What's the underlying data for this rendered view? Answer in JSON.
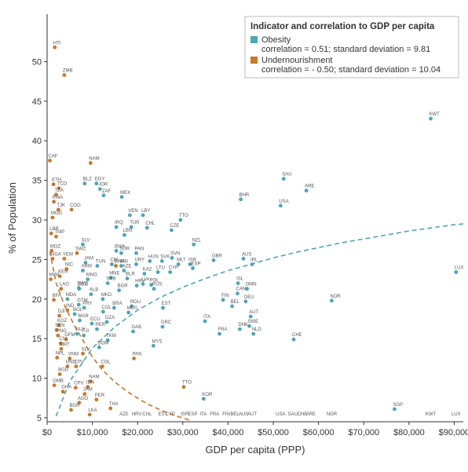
{
  "chart_data": {
    "type": "scatter",
    "title": "",
    "xlabel": "GDP per capita (PPP)",
    "ylabel": "% of Population",
    "xlim": [
      0,
      92000
    ],
    "ylim": [
      4.5,
      56
    ],
    "grid": false,
    "legend_position": "top-right",
    "x_ticks": [
      0,
      10000,
      20000,
      30000,
      40000,
      50000,
      60000,
      70000,
      80000,
      90000
    ],
    "x_tick_labels": [
      "$0",
      "$10,000",
      "$20,000",
      "$30,000",
      "$40,000",
      "$50,000",
      "$60,000",
      "$70,000",
      "$80,000",
      "$90,000"
    ],
    "y_ticks": [
      5,
      10,
      15,
      20,
      25,
      30,
      35,
      40,
      45,
      50
    ],
    "y_tick_labels": [
      "5",
      "10",
      "15",
      "20",
      "25",
      "30",
      "35",
      "40",
      "45",
      "50"
    ],
    "legend": {
      "title": "Indicator and correlation to GDP per capita"
    },
    "series": [
      {
        "name": "Obesity",
        "stats": "correlation = 0.51; standard deviation = 9.81",
        "color": "#4aa6b5",
        "points": [
          {
            "label": "KWT",
            "x": 84800,
            "y": 42.8
          },
          {
            "label": "SAU",
            "x": 52300,
            "y": 35.2
          },
          {
            "label": "ARE",
            "x": 57300,
            "y": 33.7
          },
          {
            "label": "BHR",
            "x": 42800,
            "y": 32.6
          },
          {
            "label": "USA",
            "x": 51600,
            "y": 31.8
          },
          {
            "label": "LUX",
            "x": 90400,
            "y": 23.4
          },
          {
            "label": "NOR",
            "x": 62900,
            "y": 19.8
          },
          {
            "label": "SGP",
            "x": 76800,
            "y": 6.1
          },
          {
            "label": "CHE",
            "x": 54500,
            "y": 14.9
          },
          {
            "label": "NZL",
            "x": 32400,
            "y": 26.9
          },
          {
            "label": "TTO",
            "x": 29500,
            "y": 30.0
          },
          {
            "label": "CZE",
            "x": 27500,
            "y": 28.7
          },
          {
            "label": "SVN",
            "x": 27600,
            "y": 25.2
          },
          {
            "label": "MLT",
            "x": 29000,
            "y": 24.4
          },
          {
            "label": "ISR",
            "x": 31600,
            "y": 24.4
          },
          {
            "label": "GBR",
            "x": 36800,
            "y": 24.9
          },
          {
            "label": "ESP",
            "x": 32200,
            "y": 23.9
          },
          {
            "label": "AUS",
            "x": 43400,
            "y": 25.1
          },
          {
            "label": "IRL",
            "x": 45300,
            "y": 24.4
          },
          {
            "label": "ISL",
            "x": 42200,
            "y": 22.0
          },
          {
            "label": "OMN",
            "x": 44200,
            "y": 21.3
          },
          {
            "label": "CAN",
            "x": 42100,
            "y": 20.7
          },
          {
            "label": "FIN",
            "x": 38900,
            "y": 19.9
          },
          {
            "label": "BEL",
            "x": 40900,
            "y": 19.1
          },
          {
            "label": "DEU",
            "x": 43900,
            "y": 19.7
          },
          {
            "label": "AUT",
            "x": 45000,
            "y": 17.8
          },
          {
            "label": "SWE",
            "x": 44700,
            "y": 16.6
          },
          {
            "label": "DNK",
            "x": 42600,
            "y": 16.2
          },
          {
            "label": "NLD",
            "x": 45600,
            "y": 15.6
          },
          {
            "label": "FRA",
            "x": 38100,
            "y": 15.6
          },
          {
            "label": "ITA",
            "x": 34900,
            "y": 17.2
          },
          {
            "label": "KOR",
            "x": 34600,
            "y": 7.4
          },
          {
            "label": "GRC",
            "x": 25500,
            "y": 16.5
          },
          {
            "label": "EST",
            "x": 25600,
            "y": 18.9
          },
          {
            "label": "HUN",
            "x": 22700,
            "y": 24.8
          },
          {
            "label": "SVK",
            "x": 25400,
            "y": 24.8
          },
          {
            "label": "LTU",
            "x": 24500,
            "y": 23.4
          },
          {
            "label": "CYP",
            "x": 27200,
            "y": 23.4
          },
          {
            "label": "KAZ",
            "x": 21500,
            "y": 23.2
          },
          {
            "label": "LVA",
            "x": 21200,
            "y": 21.9
          },
          {
            "label": "POL",
            "x": 23000,
            "y": 21.8
          },
          {
            "label": "HRV",
            "x": 19800,
            "y": 21.7
          },
          {
            "label": "RUS",
            "x": 23600,
            "y": 21.3
          },
          {
            "label": "MYS",
            "x": 23500,
            "y": 14.1
          },
          {
            "label": "CHL",
            "x": 22100,
            "y": 29.0
          },
          {
            "label": "TUR",
            "x": 18600,
            "y": 29.1
          },
          {
            "label": "LBY",
            "x": 21200,
            "y": 30.6
          },
          {
            "label": "VEN",
            "x": 18300,
            "y": 30.6
          },
          {
            "label": "IRQ",
            "x": 15300,
            "y": 29.1
          },
          {
            "label": "LBN",
            "x": 17100,
            "y": 28.1
          },
          {
            "label": "MEX",
            "x": 16500,
            "y": 32.9
          },
          {
            "label": "BWA",
            "x": 15300,
            "y": 26.1
          },
          {
            "label": "SUR",
            "x": 16400,
            "y": 25.8
          },
          {
            "label": "PAN",
            "x": 19700,
            "y": 25.8
          },
          {
            "label": "URY",
            "x": 19700,
            "y": 24.4
          },
          {
            "label": "AZE",
            "x": 17000,
            "y": 23.6
          },
          {
            "label": "BLR",
            "x": 17700,
            "y": 22.6
          },
          {
            "label": "BGR",
            "x": 15900,
            "y": 21.1
          },
          {
            "label": "ROU",
            "x": 18700,
            "y": 19.1
          },
          {
            "label": "MUS",
            "x": 18000,
            "y": 18.3
          },
          {
            "label": "GAB",
            "x": 19000,
            "y": 15.9
          },
          {
            "label": "BRA",
            "x": 14800,
            "y": 18.9
          },
          {
            "label": "COL",
            "x": 12400,
            "y": 18.4
          },
          {
            "label": "DZA",
            "x": 13200,
            "y": 17.1
          },
          {
            "label": "PER",
            "x": 11000,
            "y": 16.2
          },
          {
            "label": "TKM",
            "x": 13400,
            "y": 14.8
          },
          {
            "label": "DOM",
            "x": 11500,
            "y": 13.9
          },
          {
            "label": "MKD",
            "x": 12300,
            "y": 20.0
          },
          {
            "label": "ALB",
            "x": 9700,
            "y": 20.6
          },
          {
            "label": "SRB",
            "x": 13400,
            "y": 22.0
          },
          {
            "label": "MNE",
            "x": 14100,
            "y": 22.7
          },
          {
            "label": "TUN",
            "x": 11100,
            "y": 24.2
          },
          {
            "label": "CRI",
            "x": 14300,
            "y": 24.4
          },
          {
            "label": "IRN",
            "x": 16400,
            "y": 24.2
          },
          {
            "label": "JAM",
            "x": 8500,
            "y": 24.6
          },
          {
            "label": "ARM",
            "x": 7900,
            "y": 23.6
          },
          {
            "label": "MNG",
            "x": 9000,
            "y": 22.5
          },
          {
            "label": "SWZ",
            "x": 7000,
            "y": 21.4
          },
          {
            "label": "GEO",
            "x": 7100,
            "y": 21.3
          },
          {
            "label": "MDA",
            "x": 4500,
            "y": 20.0
          },
          {
            "label": "GTM",
            "x": 7000,
            "y": 19.3
          },
          {
            "label": "BOL",
            "x": 6100,
            "y": 18.1
          },
          {
            "label": "MAR",
            "x": 7200,
            "y": 17.3
          },
          {
            "label": "PRY",
            "x": 8200,
            "y": 18.9
          },
          {
            "label": "ECU",
            "x": 9900,
            "y": 16.9
          },
          {
            "label": "FJI",
            "x": 8100,
            "y": 15.4
          },
          {
            "label": "GUY",
            "x": 6600,
            "y": 15.6
          },
          {
            "label": "EGY",
            "x": 10900,
            "y": 34.6
          },
          {
            "label": "BLZ",
            "x": 8300,
            "y": 34.6
          },
          {
            "label": "JOR",
            "x": 11700,
            "y": 33.9
          },
          {
            "label": "ZAF",
            "x": 12500,
            "y": 33.1
          },
          {
            "label": "SLV",
            "x": 7900,
            "y": 26.9
          }
        ]
      },
      {
        "name": "Undernourishment",
        "stats": "correlation = - 0.50; standard deviation = 10.04",
        "color": "#c9782a",
        "points": [
          {
            "label": "HTI",
            "x": 1700,
            "y": 51.8
          },
          {
            "label": "ZMB",
            "x": 3800,
            "y": 48.3
          },
          {
            "label": "CAF",
            "x": 600,
            "y": 37.5
          },
          {
            "label": "NAM",
            "x": 9600,
            "y": 37.2
          },
          {
            "label": "ETH",
            "x": 1400,
            "y": 34.5
          },
          {
            "label": "TCD",
            "x": 2600,
            "y": 34.0
          },
          {
            "label": "TZA",
            "x": 2000,
            "y": 33.2
          },
          {
            "label": "RWA",
            "x": 1500,
            "y": 32.3
          },
          {
            "label": "TJK",
            "x": 2500,
            "y": 31.3
          },
          {
            "label": "COG",
            "x": 5400,
            "y": 31.3
          },
          {
            "label": "MOG",
            "x": 1200,
            "y": 30.3
          },
          {
            "label": "LBR",
            "x": 900,
            "y": 28.3
          },
          {
            "label": "TMP",
            "x": 2000,
            "y": 27.9
          },
          {
            "label": "MOZ",
            "x": 1000,
            "y": 26.1
          },
          {
            "label": "SWZ",
            "x": 6600,
            "y": 25.8
          },
          {
            "label": "NGA",
            "x": 1200,
            "y": 25.1
          },
          {
            "label": "YEM",
            "x": 3800,
            "y": 25.1
          },
          {
            "label": "BWA",
            "x": 15200,
            "y": 24.2
          },
          {
            "label": "NIC",
            "x": 4300,
            "y": 23.8
          },
          {
            "label": "KEN",
            "x": 2800,
            "y": 22.9
          },
          {
            "label": "MWI",
            "x": 800,
            "y": 22.5
          },
          {
            "label": "LAO",
            "x": 3100,
            "y": 21.3
          },
          {
            "label": "BFA",
            "x": 1500,
            "y": 19.9
          },
          {
            "label": "IND",
            "x": 4500,
            "y": 18.6
          },
          {
            "label": "DJI",
            "x": 2700,
            "y": 17.9
          },
          {
            "label": "KGZ",
            "x": 2600,
            "y": 16.7
          },
          {
            "label": "SEN",
            "x": 2100,
            "y": 16.1
          },
          {
            "label": "PNG",
            "x": 2400,
            "y": 15.4
          },
          {
            "label": "CIV",
            "x": 3000,
            "y": 14.4
          },
          {
            "label": "GFM",
            "x": 4200,
            "y": 14.9
          },
          {
            "label": "MRT",
            "x": 3100,
            "y": 13.7
          },
          {
            "label": "SLV",
            "x": 7900,
            "y": 13.1
          },
          {
            "label": "NPL",
            "x": 2200,
            "y": 12.6
          },
          {
            "label": "VNM",
            "x": 5000,
            "y": 12.5
          },
          {
            "label": "HND",
            "x": 4500,
            "y": 11.5
          },
          {
            "label": "CPV",
            "x": 6400,
            "y": 11.5
          },
          {
            "label": "COL",
            "x": 12200,
            "y": 11.5
          },
          {
            "label": "BGD",
            "x": 2800,
            "y": 10.5
          },
          {
            "label": "NAM",
            "x": 9600,
            "y": 9.6
          },
          {
            "label": "CPV",
            "x": 6300,
            "y": 8.8
          },
          {
            "label": "IDN",
            "x": 9000,
            "y": 8.9
          },
          {
            "label": "JAM",
            "x": 8300,
            "y": 8.0
          },
          {
            "label": "PER",
            "x": 10900,
            "y": 7.3
          },
          {
            "label": "AGO",
            "x": 7100,
            "y": 6.9
          },
          {
            "label": "BGR",
            "x": 5300,
            "y": 6.0
          },
          {
            "label": "THA",
            "x": 14000,
            "y": 6.2
          },
          {
            "label": "LKA",
            "x": 9400,
            "y": 5.4
          },
          {
            "label": "PAN",
            "x": 19200,
            "y": 12.5
          },
          {
            "label": "TTO",
            "x": 30200,
            "y": 8.9
          },
          {
            "label": "GHA",
            "x": 3500,
            "y": 8.3
          },
          {
            "label": "GMB",
            "x": 1600,
            "y": 9.1
          }
        ]
      }
    ],
    "baseline_labels": [
      "AZE",
      "HRV",
      "CHL",
      "EST",
      "CYP",
      "ISR",
      "ESP",
      "ITA",
      "FRA",
      "FIN",
      "BEL",
      "AUS",
      "AUT",
      "USA",
      "SAU",
      "CHE",
      "ARE",
      "NOR",
      "KWT",
      "LUX"
    ],
    "trendlines": [
      {
        "series": "Obesity",
        "color": "#4aa6b5",
        "x": [
          2000,
          5000,
          10000,
          15000,
          20000,
          25000,
          30000,
          35000,
          40000,
          45000,
          50000,
          55000,
          60000,
          65000,
          70000,
          75000,
          80000,
          85000,
          90000,
          92000
        ],
        "y": [
          5.2,
          9.6,
          13.8,
          16.5,
          18.6,
          20.2,
          21.5,
          22.6,
          23.6,
          24.4,
          25.2,
          25.9,
          26.5,
          27.1,
          27.6,
          28.1,
          28.6,
          29.0,
          29.4,
          29.5
        ]
      },
      {
        "series": "Undernourishment",
        "color": "#c9782a",
        "x": [
          600,
          2000,
          4000,
          6000,
          8000,
          10000,
          12000,
          15000,
          18000,
          20000,
          22000,
          25000,
          28000,
          30000,
          32000
        ],
        "y": [
          26,
          22,
          19,
          16.7,
          14.7,
          12.7,
          11.2,
          9.5,
          8.2,
          7.5,
          6.8,
          6.0,
          5.3,
          5.0,
          4.6
        ]
      }
    ]
  }
}
